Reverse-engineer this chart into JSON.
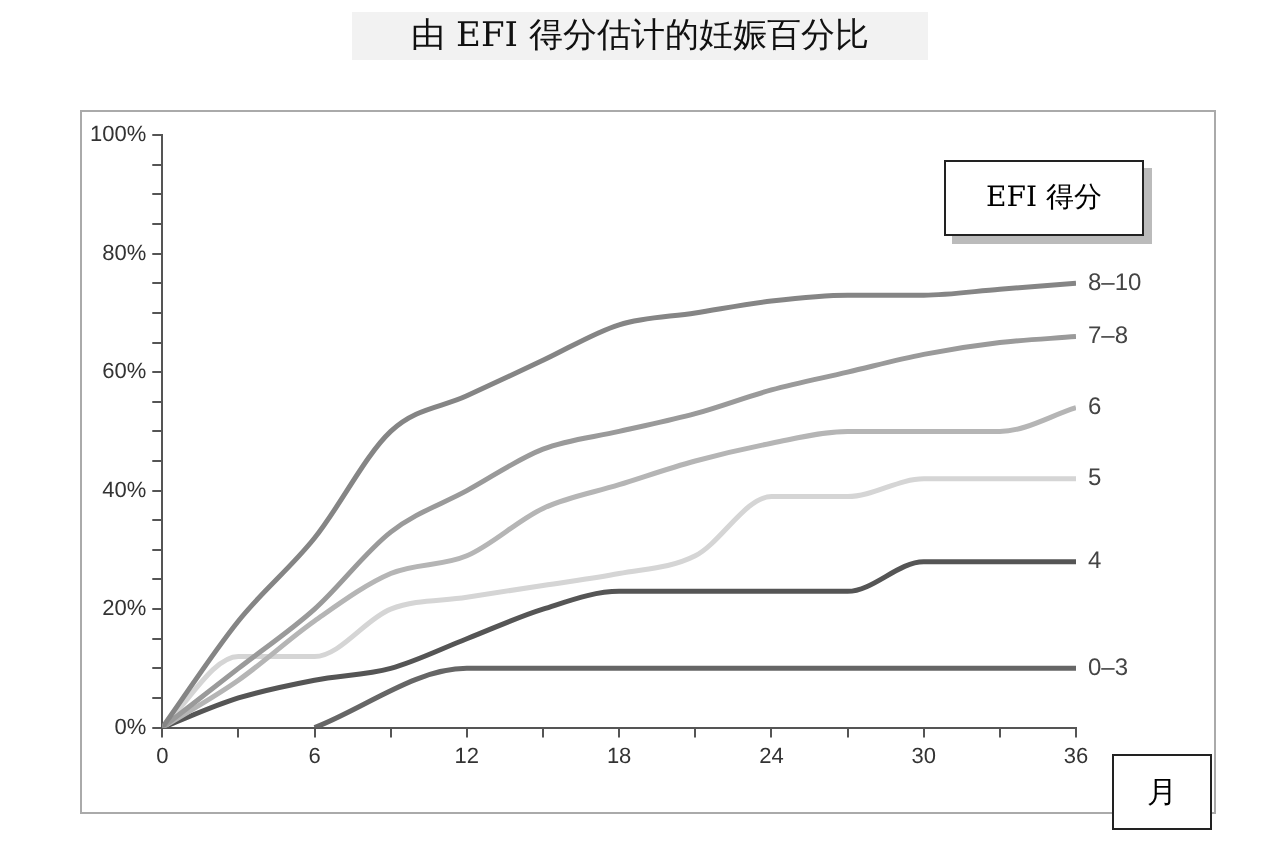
{
  "chart_data": {
    "type": "line",
    "title": "由 EFI 得分估计的妊娠百分比",
    "xlabel": "月",
    "legend_title": "EFI 得分",
    "xlim": [
      0,
      36
    ],
    "xticks": [
      0,
      {
        "value": 3,
        "label": null
      },
      6,
      {
        "value": 9,
        "label": null
      },
      12,
      {
        "value": 15,
        "label": null
      },
      18,
      {
        "value": 21,
        "label": null
      },
      24,
      {
        "value": 27,
        "label": null
      },
      30,
      {
        "value": 33,
        "label": null
      },
      36
    ],
    "ylim": [
      0,
      100
    ],
    "yticks": [
      {
        "value": 0,
        "label": "0%"
      },
      {
        "value": 5,
        "label": null
      },
      {
        "value": 10,
        "label": null
      },
      {
        "value": 15,
        "label": null
      },
      {
        "value": 20,
        "label": "20%"
      },
      {
        "value": 25,
        "label": null
      },
      {
        "value": 30,
        "label": null
      },
      {
        "value": 35,
        "label": null
      },
      {
        "value": 40,
        "label": "40%"
      },
      {
        "value": 45,
        "label": null
      },
      {
        "value": 50,
        "label": null
      },
      {
        "value": 55,
        "label": null
      },
      {
        "value": 60,
        "label": "60%"
      },
      {
        "value": 65,
        "label": null
      },
      {
        "value": 70,
        "label": null
      },
      {
        "value": 75,
        "label": null
      },
      {
        "value": 80,
        "label": "80%"
      },
      {
        "value": 85,
        "label": null
      },
      {
        "value": 90,
        "label": null
      },
      {
        "value": 95,
        "label": null
      },
      {
        "value": 100,
        "label": "100%"
      }
    ],
    "x": [
      0,
      3,
      6,
      9,
      12,
      15,
      18,
      21,
      24,
      27,
      30,
      33,
      36
    ],
    "marker": "none",
    "series": [
      {
        "name": "8–10",
        "color": "#858585",
        "values": [
          0,
          18,
          32,
          50,
          56,
          62,
          68,
          70,
          72,
          73,
          73,
          74,
          75
        ]
      },
      {
        "name": "7–8",
        "color": "#9a9a9a",
        "values": [
          0,
          10,
          20,
          33,
          40,
          47,
          50,
          53,
          57,
          60,
          63,
          65,
          66
        ]
      },
      {
        "name": "6",
        "color": "#b5b5b5",
        "values": [
          0,
          8,
          18,
          26,
          29,
          37,
          41,
          45,
          48,
          50,
          50,
          50,
          54
        ]
      },
      {
        "name": "5",
        "color": "#d5d5d5",
        "values": [
          0,
          12,
          12,
          20,
          22,
          24,
          26,
          29,
          39,
          39,
          42,
          42,
          42
        ]
      },
      {
        "name": "4",
        "color": "#555555",
        "values": [
          0,
          5,
          8,
          10,
          15,
          20,
          23,
          23,
          23,
          23,
          28,
          28,
          28
        ]
      },
      {
        "name": "0–3",
        "color": "#666666",
        "x": [
          6,
          12,
          18,
          24,
          30,
          36
        ],
        "values": [
          0,
          10,
          10,
          10,
          10,
          10
        ]
      }
    ]
  }
}
